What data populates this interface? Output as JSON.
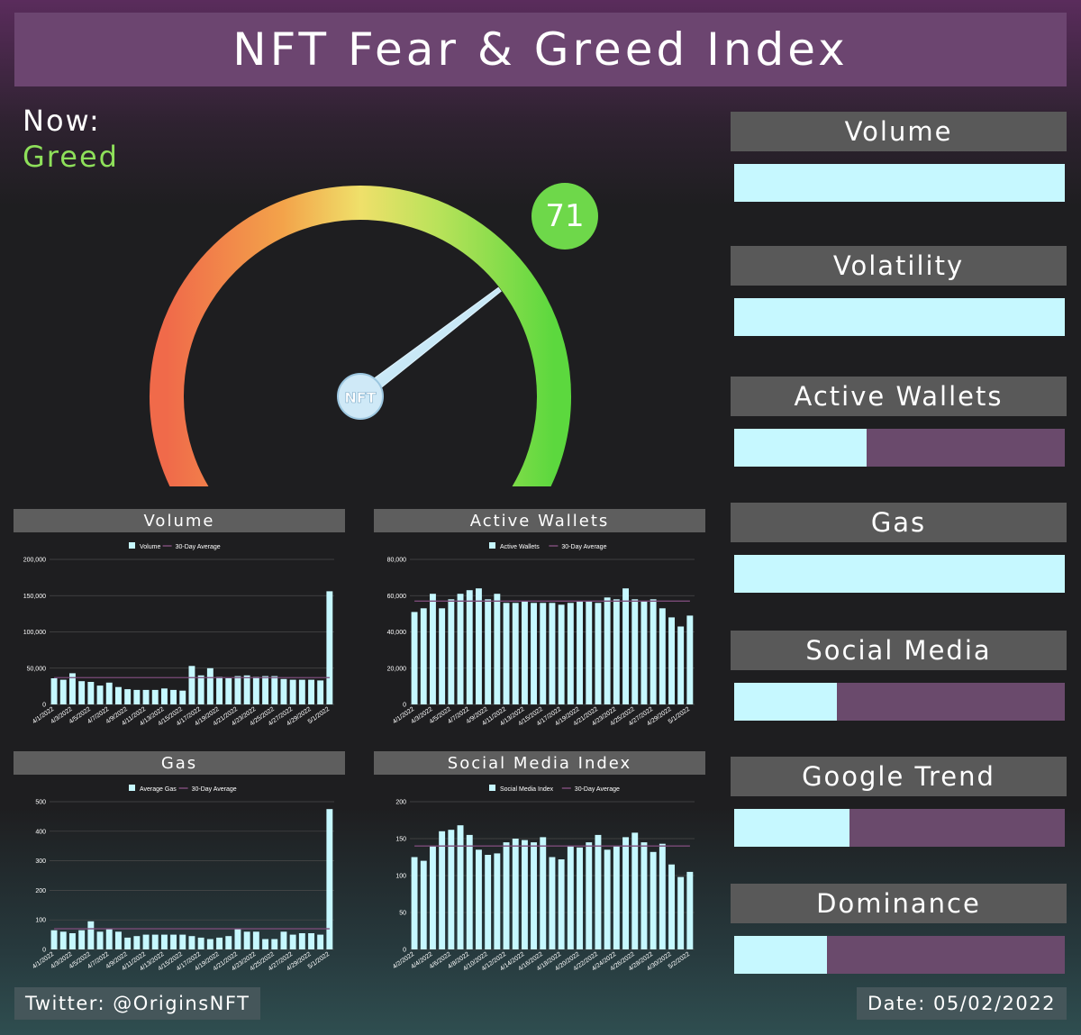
{
  "title": "NFT Fear & Greed Index",
  "now": {
    "label": "Now:",
    "state": "Greed"
  },
  "gauge": {
    "score": 71,
    "score_text": "71",
    "min": 0,
    "max": 100,
    "hub_label": "NFT"
  },
  "indicators": [
    {
      "key": "volume",
      "label": "Volume",
      "level": 1.0
    },
    {
      "key": "volatility",
      "label": "Volatility",
      "level": 1.0
    },
    {
      "key": "active-wallets",
      "label": "Active Wallets",
      "level": 0.4
    },
    {
      "key": "gas",
      "label": "Gas",
      "level": 1.0
    },
    {
      "key": "social-media",
      "label": "Social Media",
      "level": 0.31
    },
    {
      "key": "google-trend",
      "label": "Google Trend",
      "level": 0.35
    },
    {
      "key": "dominance",
      "label": "Dominance",
      "level": 0.28
    }
  ],
  "footer": {
    "twitter": "Twitter: @OriginsNFT",
    "date": "Date: 05/02/2022"
  },
  "colors": {
    "bar": "#c6f8ff",
    "average_line": "#7b4b78",
    "greed": "#8ee05a",
    "score_badge": "#6ed84a"
  },
  "chart_data": [
    {
      "panel_title": "Volume",
      "type": "bar",
      "series": [
        {
          "name": "Volume",
          "values": [
            36000,
            34000,
            43000,
            32000,
            31000,
            26000,
            30000,
            24000,
            21000,
            20000,
            20000,
            20000,
            22000,
            20000,
            19000,
            53000,
            40000,
            50000,
            38000,
            36000,
            39000,
            40000,
            38000,
            39000,
            39000,
            35000,
            34000,
            34000,
            34000,
            33000,
            156000
          ]
        },
        {
          "name": "30-Day Average",
          "type": "line",
          "values": [
            37000,
            37000
          ]
        }
      ],
      "x_tick_labels": [
        "4/1/2022",
        "4/3/2022",
        "4/5/2022",
        "4/7/2022",
        "4/9/2022",
        "4/11/2022",
        "4/13/2022",
        "4/15/2022",
        "4/17/2022",
        "4/19/2022",
        "4/21/2022",
        "4/23/2022",
        "4/25/2022",
        "4/27/2022",
        "4/29/2022",
        "5/1/2022"
      ],
      "y_ticks": [
        "0",
        "50,000",
        "100,000",
        "150,000",
        "200,000"
      ],
      "ylim": [
        0,
        200000
      ]
    },
    {
      "panel_title": "Active Wallets",
      "type": "bar",
      "series": [
        {
          "name": "Active Wallets",
          "values": [
            51000,
            53000,
            61000,
            53000,
            58000,
            61000,
            63000,
            64000,
            58000,
            61000,
            56000,
            56000,
            57000,
            56000,
            56000,
            56000,
            55000,
            56000,
            57000,
            57000,
            56000,
            59000,
            58000,
            64000,
            58000,
            57000,
            58000,
            53000,
            48000,
            43000,
            49000
          ]
        },
        {
          "name": "30-Day Average",
          "type": "line",
          "values": [
            57000,
            57000
          ]
        }
      ],
      "x_tick_labels": [
        "4/1/2022",
        "4/3/2022",
        "4/5/2022",
        "4/7/2022",
        "4/9/2022",
        "4/11/2022",
        "4/13/2022",
        "4/15/2022",
        "4/17/2022",
        "4/19/2022",
        "4/21/2022",
        "4/23/2022",
        "4/25/2022",
        "4/27/2022",
        "4/29/2022",
        "5/1/2022"
      ],
      "y_ticks": [
        "0",
        "20,000",
        "40,000",
        "60,000",
        "80,000"
      ],
      "ylim": [
        0,
        80000
      ]
    },
    {
      "panel_title": "Gas",
      "type": "bar",
      "series": [
        {
          "name": "Average Gas",
          "values": [
            65,
            60,
            55,
            65,
            95,
            60,
            70,
            60,
            40,
            45,
            50,
            50,
            50,
            50,
            50,
            45,
            40,
            35,
            40,
            45,
            70,
            60,
            60,
            35,
            35,
            60,
            50,
            55,
            55,
            50,
            475
          ]
        },
        {
          "name": "30-Day Average",
          "type": "line",
          "values": [
            70,
            70
          ]
        }
      ],
      "x_tick_labels": [
        "4/1/2022",
        "4/3/2022",
        "4/5/2022",
        "4/7/2022",
        "4/9/2022",
        "4/11/2022",
        "4/13/2022",
        "4/15/2022",
        "4/17/2022",
        "4/19/2022",
        "4/21/2022",
        "4/23/2022",
        "4/25/2022",
        "4/27/2022",
        "4/29/2022",
        "5/1/2022"
      ],
      "y_ticks": [
        "0",
        "100",
        "200",
        "300",
        "400",
        "500"
      ],
      "ylim": [
        0,
        500
      ]
    },
    {
      "panel_title": "Social Media Index",
      "type": "bar",
      "series": [
        {
          "name": "Social Media Index",
          "values": [
            125,
            120,
            140,
            160,
            162,
            168,
            155,
            135,
            128,
            130,
            145,
            150,
            148,
            145,
            152,
            125,
            122,
            140,
            138,
            145,
            155,
            135,
            140,
            152,
            158,
            145,
            132,
            143,
            115,
            98,
            105
          ]
        },
        {
          "name": "30-Day Average",
          "type": "line",
          "values": [
            140,
            140
          ]
        }
      ],
      "x_tick_labels": [
        "4/2/2022",
        "4/4/2022",
        "4/6/2022",
        "4/8/2022",
        "4/10/2022",
        "4/12/2022",
        "4/14/2022",
        "4/16/2022",
        "4/18/2022",
        "4/20/2022",
        "4/22/2022",
        "4/24/2022",
        "4/26/2022",
        "4/28/2022",
        "4/30/2022",
        "5/2/2022"
      ],
      "y_ticks": [
        "0",
        "50",
        "100",
        "150",
        "200"
      ],
      "ylim": [
        0,
        200
      ]
    }
  ]
}
